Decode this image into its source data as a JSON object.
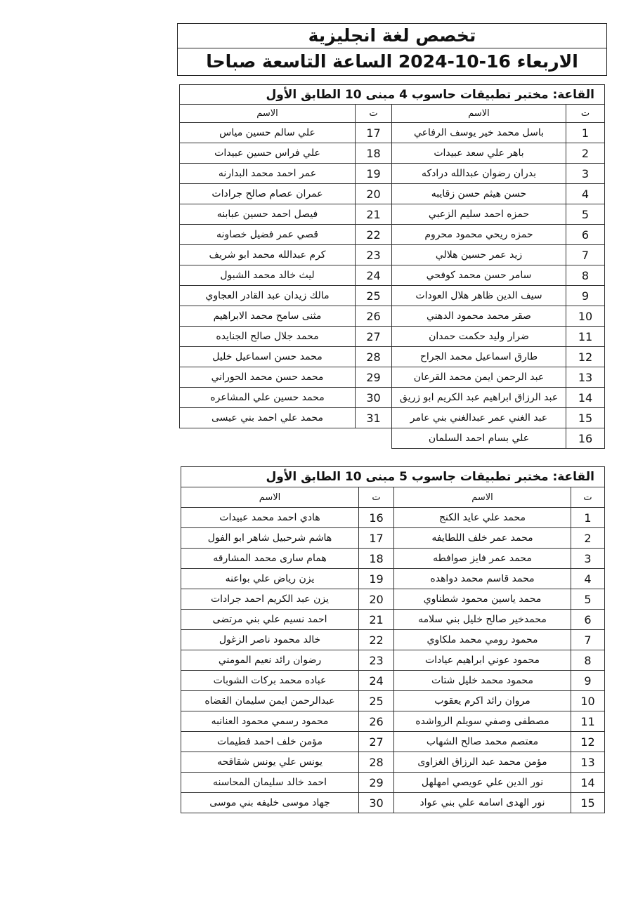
{
  "header": {
    "title": "تخصص لغة انجليزية",
    "subtitle": "الاربعاء 16-10-2024 الساعة التاسعة صباحا"
  },
  "tables": [
    {
      "room": "القاعة: مختبر تطبيقات حاسوب 4 مبنى 10 الطابق الأول",
      "headers": {
        "num": "ت",
        "name": "الاسم"
      },
      "right": [
        [
          "1",
          "باسل محمد خير يوسف الرفاعي"
        ],
        [
          "2",
          "باهر علي سعد عبيدات"
        ],
        [
          "3",
          "بدران رضوان عبدالله درادكه"
        ],
        [
          "4",
          "حسن هيثم حسن زقايبه"
        ],
        [
          "5",
          "حمزه احمد سليم الزعبي"
        ],
        [
          "6",
          "حمزه ريحي محمود محروم"
        ],
        [
          "7",
          "زيد عمر حسين هلالي"
        ],
        [
          "8",
          "سامر حسن محمد كوفحي"
        ],
        [
          "9",
          "سيف الدين ظاهر هلال العودات"
        ],
        [
          "10",
          "صقر محمد محمود الدهني"
        ],
        [
          "11",
          "ضرار وليد حكمت حمدان"
        ],
        [
          "12",
          "طارق اسماعيل محمد الجراح"
        ],
        [
          "13",
          "عبد الرحمن ايمن محمد القرعان"
        ],
        [
          "14",
          "عبد الرزاق ابراهيم عبد الكريم ابو زريق"
        ],
        [
          "15",
          "عبد الغني عمر عبدالغني بني عامر"
        ],
        [
          "16",
          "علي بسام احمد السلمان"
        ]
      ],
      "left": [
        [
          "17",
          "علي سالم حسين مياس"
        ],
        [
          "18",
          "علي فراس حسين عبيدات"
        ],
        [
          "19",
          "عمر احمد محمد البدارنه"
        ],
        [
          "20",
          "عمران عصام صالح جرادات"
        ],
        [
          "21",
          "فيصل احمد حسين عبابنه"
        ],
        [
          "22",
          "قصي عمر فضيل خصاونه"
        ],
        [
          "23",
          "كرم عبدالله محمد ابو شريف"
        ],
        [
          "24",
          "ليث خالد محمد الشبول"
        ],
        [
          "25",
          "مالك زيدان عبد القادر العجاوي"
        ],
        [
          "26",
          "مثنى سامح محمد الابراهيم"
        ],
        [
          "27",
          "محمد جلال صالح الجنايده"
        ],
        [
          "28",
          "محمد حسن اسماعيل خليل"
        ],
        [
          "29",
          "محمد حسن محمد الحوراني"
        ],
        [
          "30",
          "محمد حسين علي المشاعره"
        ],
        [
          "31",
          "محمد علي احمد بني عيسى"
        ]
      ]
    },
    {
      "room": "القاعة: مختبر تطبيقات جاسوب 5 مبنى 10 الطابق الأول",
      "headers": {
        "num": "ت",
        "name": "الاسم"
      },
      "right": [
        [
          "1",
          "محمد علي عايد الكنج"
        ],
        [
          "2",
          "محمد عمر خلف اللطايفه"
        ],
        [
          "3",
          "محمد عمر فايز صوافطه"
        ],
        [
          "4",
          "محمد قاسم محمد دواهده"
        ],
        [
          "5",
          "محمد ياسين محمود شطناوي"
        ],
        [
          "6",
          "محمدخير صالح خليل بني سلامه"
        ],
        [
          "7",
          "محمود رومي محمد ملكاوي"
        ],
        [
          "8",
          "محمود عوني ابراهيم عيادات"
        ],
        [
          "9",
          "محمود محمد خليل شتات"
        ],
        [
          "10",
          "مروان رائد اكرم يعقوب"
        ],
        [
          "11",
          "مصطفى وصفي سويلم الرواشده"
        ],
        [
          "12",
          "معتصم محمد صالح الشهاب"
        ],
        [
          "13",
          "مؤمن محمد عبد الرزاق الغزاوى"
        ],
        [
          "14",
          "نور الدين علي عويصي امهلهل"
        ],
        [
          "15",
          "نور الهدى اسامه علي بني عواد"
        ]
      ],
      "left": [
        [
          "16",
          "هادي احمد محمد عبيدات"
        ],
        [
          "17",
          "هاشم شرحبيل شاهر ابو الفول"
        ],
        [
          "18",
          "همام سارى محمد المشارقه"
        ],
        [
          "19",
          "يزن رياض علي بواعنه"
        ],
        [
          "20",
          "يزن عبد الكريم احمد جرادات"
        ],
        [
          "21",
          "احمد نسيم علي بني مرتضى"
        ],
        [
          "22",
          "خالد محمود ناصر الزغول"
        ],
        [
          "23",
          "رضوان رائد نعيم المومني"
        ],
        [
          "24",
          "عباده محمد بركات الشوبات"
        ],
        [
          "25",
          "عبدالرحمن ايمن سليمان القضاه"
        ],
        [
          "26",
          "محمود رسمي محمود العنانبه"
        ],
        [
          "27",
          "مؤمن خلف احمد فطيمات"
        ],
        [
          "28",
          "يونس علي يونس شقاقحه"
        ],
        [
          "29",
          "احمد خالد سليمان المحاسنه"
        ],
        [
          "30",
          "جهاد موسى خليفه بني موسى"
        ]
      ]
    }
  ]
}
